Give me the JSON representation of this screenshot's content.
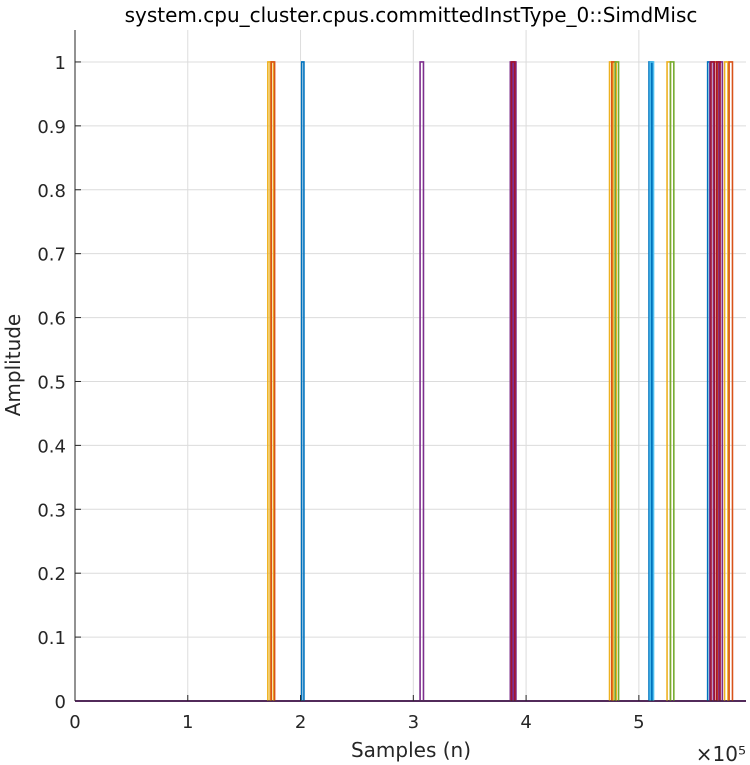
{
  "chart_data": {
    "type": "line",
    "title": "system.cpu_cluster.cpus.committedInstType_0::SimdMisc",
    "xlabel": "Samples (n)",
    "ylabel": "Amplitude",
    "x_exponent_label": "×10⁵",
    "xlim": [
      0,
      5.95
    ],
    "ylim": [
      0,
      1.05
    ],
    "x_ticks": [
      0,
      1,
      2,
      3,
      4,
      5
    ],
    "x_tick_labels": [
      "0",
      "1",
      "2",
      "3",
      "4",
      "5"
    ],
    "y_ticks": [
      0,
      0.1,
      0.2,
      0.3,
      0.4,
      0.5,
      0.6,
      0.7,
      0.8,
      0.9,
      1
    ],
    "y_tick_labels": [
      "0",
      "0.1",
      "0.2",
      "0.3",
      "0.4",
      "0.5",
      "0.6",
      "0.7",
      "0.8",
      "0.9",
      "1"
    ],
    "grid": true,
    "legend": "none",
    "baseline_color": "#7e2f8e",
    "series": [
      {
        "color": "#edb120",
        "pulses": [
          [
            1.71,
            1.74
          ],
          [
            1.73,
            1.76
          ],
          [
            4.74,
            4.77
          ],
          [
            4.77,
            4.8
          ],
          [
            5.25,
            5.28
          ],
          [
            5.76,
            5.79
          ]
        ]
      },
      {
        "color": "#d95319",
        "pulses": [
          [
            1.74,
            1.77
          ],
          [
            4.76,
            4.79
          ],
          [
            5.67,
            5.7
          ],
          [
            5.8,
            5.83
          ]
        ]
      },
      {
        "color": "#0072bd",
        "pulses": [
          [
            2.01,
            2.03
          ],
          [
            5.09,
            5.11
          ],
          [
            5.1,
            5.12
          ],
          [
            5.61,
            5.63
          ]
        ]
      },
      {
        "color": "#7e2f8e",
        "pulses": [
          [
            3.06,
            3.09
          ],
          [
            3.86,
            3.89
          ],
          [
            3.88,
            3.91
          ],
          [
            5.63,
            5.66
          ],
          [
            5.71,
            5.74
          ]
        ]
      },
      {
        "color": "#a2142f",
        "pulses": [
          [
            3.87,
            3.9
          ],
          [
            5.64,
            5.67
          ],
          [
            5.69,
            5.72
          ]
        ]
      },
      {
        "color": "#77ac30",
        "pulses": [
          [
            4.79,
            4.82
          ],
          [
            5.28,
            5.31
          ]
        ]
      },
      {
        "color": "#4dbeee",
        "pulses": [
          [
            5.1,
            5.13
          ]
        ]
      }
    ]
  }
}
